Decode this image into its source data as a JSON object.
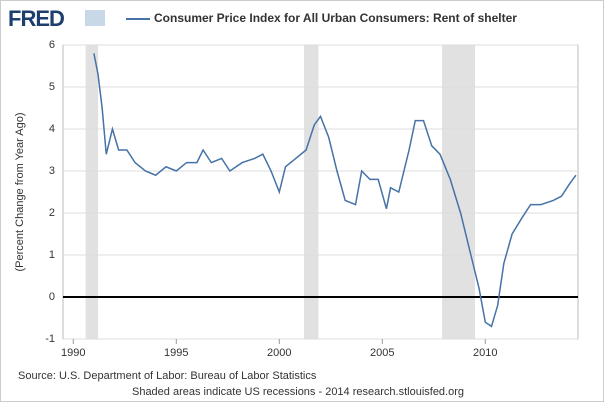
{
  "chart_data": {
    "type": "line",
    "brand": "FRED",
    "title": "Consumer Price Index for All Urban Consumers: Rent of shelter",
    "y_label": "(Percent Change from Year Ago)",
    "source": "Source: U.S. Department of Labor: Bureau of Labor Statistics",
    "note": "Shaded areas indicate US recessions - 2014 research.stlouisfed.org",
    "x": [
      1991.0,
      1991.2,
      1991.4,
      1991.6,
      1991.9,
      1992.2,
      1992.6,
      1993.0,
      1993.5,
      1994.0,
      1994.5,
      1995.0,
      1995.5,
      1996.0,
      1996.3,
      1996.7,
      1997.2,
      1997.6,
      1998.2,
      1998.8,
      1999.2,
      1999.6,
      2000.0,
      2000.3,
      2000.8,
      2001.3,
      2001.7,
      2002.0,
      2002.4,
      2002.8,
      2003.2,
      2003.7,
      2004.0,
      2004.4,
      2004.8,
      2005.2,
      2005.4,
      2005.8,
      2006.3,
      2006.6,
      2007.0,
      2007.4,
      2007.8,
      2008.3,
      2008.8,
      2009.3,
      2009.7,
      2010.0,
      2010.3,
      2010.6,
      2010.9,
      2011.3,
      2011.8,
      2012.2,
      2012.7,
      2013.3,
      2013.7,
      2014.1,
      2014.4
    ],
    "series": [
      {
        "name": "Consumer Price Index for All Urban Consumers: Rent of shelter",
        "color": "#4572a7",
        "values": [
          5.8,
          5.3,
          4.5,
          3.4,
          4.0,
          3.5,
          3.5,
          3.2,
          3.0,
          2.9,
          3.1,
          3.0,
          3.2,
          3.2,
          3.5,
          3.2,
          3.3,
          3.0,
          3.2,
          3.3,
          3.4,
          3.0,
          2.5,
          3.1,
          3.3,
          3.5,
          4.1,
          4.3,
          3.8,
          3.0,
          2.3,
          2.2,
          3.0,
          2.8,
          2.8,
          2.1,
          2.6,
          2.5,
          3.5,
          4.2,
          4.2,
          3.6,
          3.4,
          2.8,
          2.0,
          1.0,
          0.2,
          -0.6,
          -0.7,
          -0.2,
          0.8,
          1.5,
          1.9,
          2.2,
          2.2,
          2.3,
          2.4,
          2.7,
          2.9
        ]
      }
    ],
    "recessions": [
      [
        1990.6,
        1991.2
      ],
      [
        2001.2,
        2001.9
      ],
      [
        2007.9,
        2009.5
      ]
    ],
    "recession_color": "#e1e1e1",
    "xlim": [
      1989.5,
      2014.5
    ],
    "xticks": [
      1990,
      1995,
      2000,
      2005,
      2010
    ],
    "ylim": [
      -1,
      6
    ],
    "yticks": [
      -1,
      0,
      1,
      2,
      3,
      4,
      5,
      6
    ],
    "grid": true
  }
}
